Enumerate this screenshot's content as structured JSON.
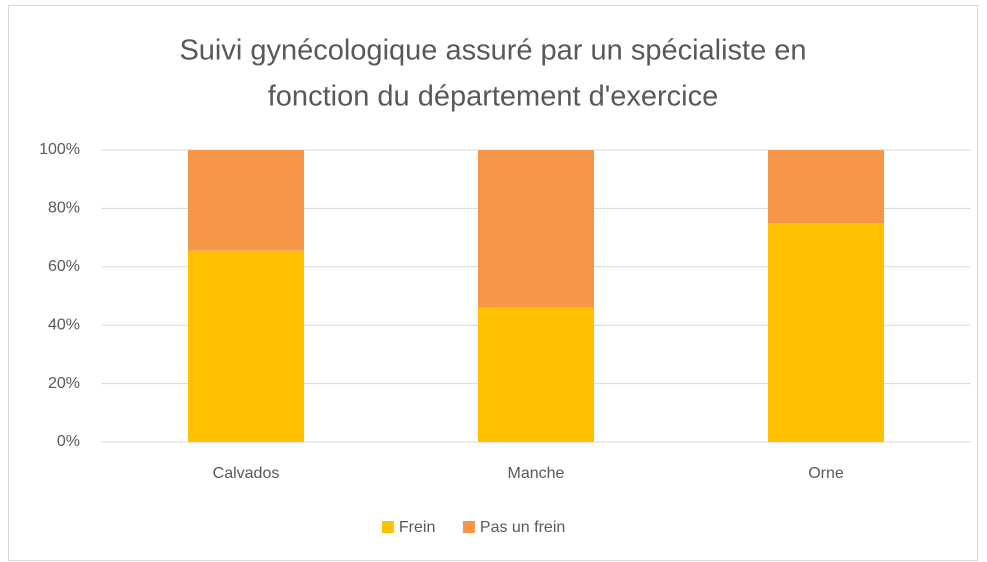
{
  "chart_data": {
    "type": "bar",
    "stacked": true,
    "title": [
      "Suivi gynécologique assuré par un spécialiste en",
      "fonction du département d'exercice"
    ],
    "categories": [
      "Calvados",
      "Manche",
      "Orne"
    ],
    "series": [
      {
        "name": "Frein",
        "color": "#FFC000",
        "values": [
          65.5,
          46,
          75
        ]
      },
      {
        "name": "Pas un frein",
        "color": "#F79646",
        "values": [
          34.5,
          54,
          25
        ]
      }
    ],
    "ylim": [
      0,
      100
    ],
    "yticks": [
      {
        "value": 0,
        "label": "0%"
      },
      {
        "value": 20,
        "label": "20%"
      },
      {
        "value": 40,
        "label": "40%"
      },
      {
        "value": 60,
        "label": "60%"
      },
      {
        "value": 80,
        "label": "80%"
      },
      {
        "value": 100,
        "label": "100%"
      }
    ],
    "grid": true,
    "legend": "bottom"
  }
}
